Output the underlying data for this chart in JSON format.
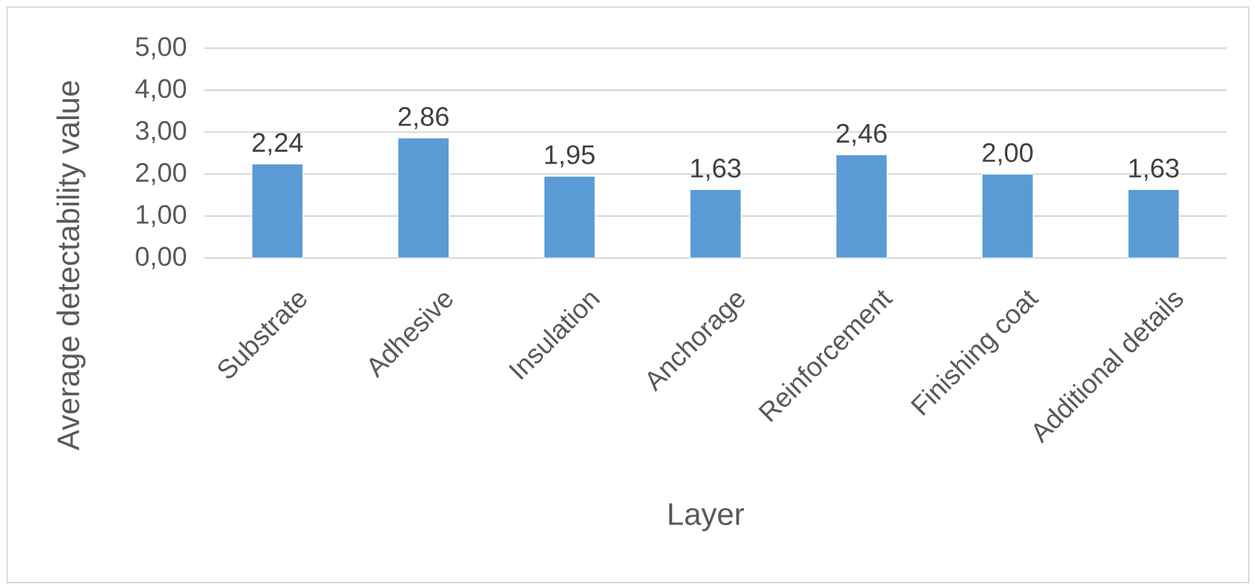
{
  "chart_data": {
    "type": "bar",
    "xlabel": "Layer",
    "ylabel": "Average detectability value",
    "categories": [
      "Substrate",
      "Adhesive",
      "Insulation",
      "Anchorage",
      "Reinforcement",
      "Finishing coat",
      "Additional details"
    ],
    "values": [
      2.24,
      2.86,
      1.95,
      1.63,
      2.46,
      2.0,
      1.63
    ],
    "value_labels": [
      "2,24",
      "2,86",
      "1,95",
      "1,63",
      "2,46",
      "2,00",
      "1,63"
    ],
    "color": "#5b9bd5",
    "ylim": [
      0,
      5
    ],
    "yticks": [
      {
        "value": 0,
        "label": "0,00"
      },
      {
        "value": 1,
        "label": "1,00"
      },
      {
        "value": 2,
        "label": "2,00"
      },
      {
        "value": 3,
        "label": "3,00"
      },
      {
        "value": 4,
        "label": "4,00"
      },
      {
        "value": 5,
        "label": "5,00"
      }
    ],
    "grid": "y"
  }
}
